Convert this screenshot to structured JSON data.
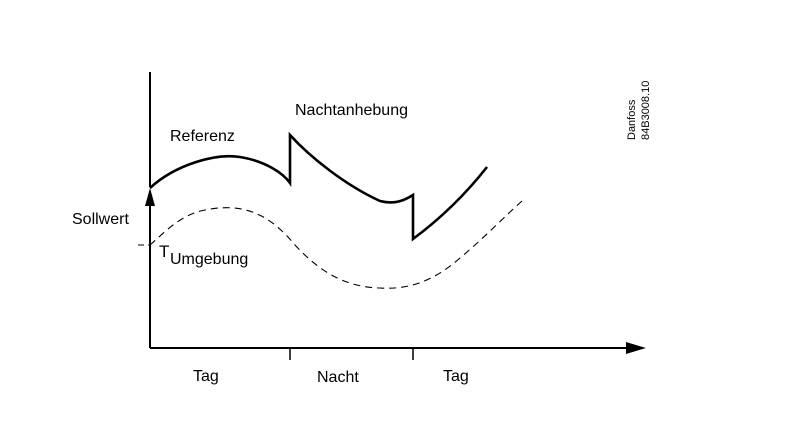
{
  "labels": {
    "referenz": "Referenz",
    "nachtanhebung": "Nachtanhebung",
    "sollwert": "Sollwert",
    "t_symbol": "T",
    "umgebung": "Umgebung",
    "tag_left": "Tag",
    "nacht": "Nacht",
    "tag_right": "Tag"
  },
  "code": {
    "company": "Danfoss",
    "number": "84B3008.10"
  },
  "colors": {
    "line": "#000000",
    "background": "#ffffff"
  }
}
